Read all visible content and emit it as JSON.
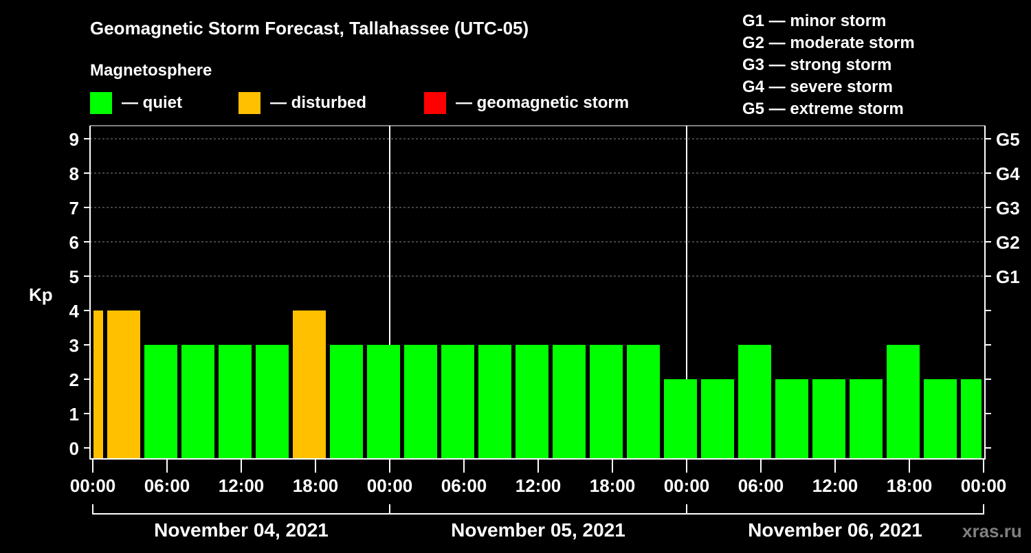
{
  "chart_data": {
    "type": "bar",
    "title": "Geomagnetic Storm Forecast, Tallahassee (UTC-05)",
    "subtitle": "Magnetosphere",
    "legend": [
      {
        "label": "— quiet",
        "color": "#00ff00"
      },
      {
        "label": "— disturbed",
        "color": "#ffc000"
      },
      {
        "label": "— geomagnetic storm",
        "color": "#ff0000"
      }
    ],
    "storm_scale": [
      "G1 — minor storm",
      "G2 — moderate storm",
      "G3 — strong storm",
      "G4 — severe storm",
      "G5 — extreme storm"
    ],
    "ylabel": "Kp",
    "ylim": [
      0,
      9
    ],
    "yticks": [
      "0",
      "1",
      "2",
      "3",
      "4",
      "5",
      "6",
      "7",
      "8",
      "9"
    ],
    "right_ticks": [
      {
        "kp": 5,
        "label": "G1"
      },
      {
        "kp": 6,
        "label": "G2"
      },
      {
        "kp": 7,
        "label": "G3"
      },
      {
        "kp": 8,
        "label": "G4"
      },
      {
        "kp": 9,
        "label": "G5"
      }
    ],
    "xticks": [
      "00:00",
      "06:00",
      "12:00",
      "18:00",
      "00:00",
      "06:00",
      "12:00",
      "18:00",
      "00:00",
      "06:00",
      "12:00",
      "18:00",
      "00:00"
    ],
    "days": [
      "November 04, 2021",
      "November 05, 2021",
      "November 06, 2021"
    ],
    "interval_hours": 3,
    "first_interval_start_hour": -2,
    "values": [
      4,
      4,
      3,
      3,
      3,
      3,
      4,
      3,
      3,
      3,
      3,
      3,
      3,
      3,
      3,
      3,
      2,
      2,
      3,
      2,
      2,
      2,
      3,
      2,
      2
    ],
    "grid": true,
    "watermark": "xras.ru"
  }
}
